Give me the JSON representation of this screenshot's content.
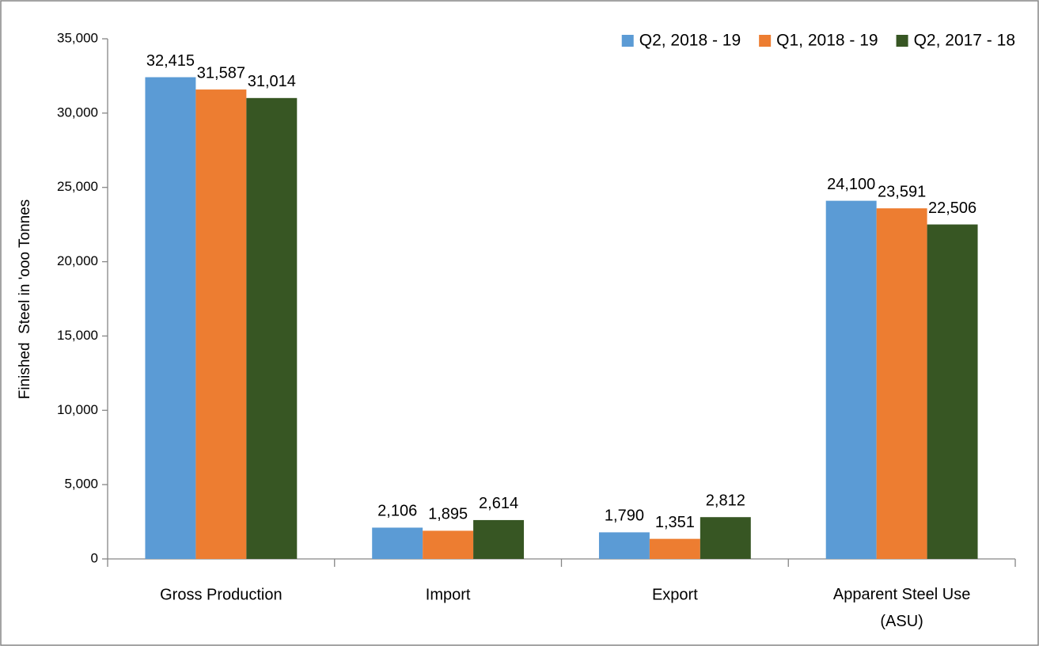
{
  "chart_data": {
    "type": "bar",
    "y_axis_label": "Finished  Steel in 'ooo Tonnes",
    "categories": [
      "Gross Production",
      "Import",
      "Export",
      "Apparent Steel Use (ASU)"
    ],
    "series": [
      {
        "name": "Q2, 2018 - 19",
        "color": "#5b9bd5",
        "label_color": "#1f4e79",
        "values": [
          32415,
          2106,
          1790,
          24100
        ],
        "value_labels": [
          "32,415",
          "2,106",
          "1,790",
          "24,100"
        ]
      },
      {
        "name": "Q1, 2018 - 19",
        "color": "#ed7d31",
        "label_color": "#843c0c",
        "values": [
          31587,
          1895,
          1351,
          23591
        ],
        "value_labels": [
          "31,587",
          "1,895",
          "1,351",
          "23,591"
        ]
      },
      {
        "name": "Q2, 2017 - 18",
        "color": "#375623",
        "label_color": "#375623",
        "values": [
          31014,
          2614,
          2812,
          22506
        ],
        "value_labels": [
          "31,014",
          "2,614",
          "2,812",
          "22,506"
        ]
      }
    ],
    "ylim": [
      0,
      35000
    ],
    "yticks": [
      0,
      {
        "value": 5000,
        "label": "5,000"
      },
      {
        "value": 10000,
        "label": "10,000"
      },
      {
        "value": 15000,
        "label": "15,000"
      },
      {
        "value": 20000,
        "label": "20,000"
      },
      {
        "value": 25000,
        "label": "25,000"
      },
      {
        "value": 30000,
        "label": "30,000"
      },
      {
        "value": 35000,
        "label": "35,000"
      }
    ],
    "legend": "top-right"
  }
}
